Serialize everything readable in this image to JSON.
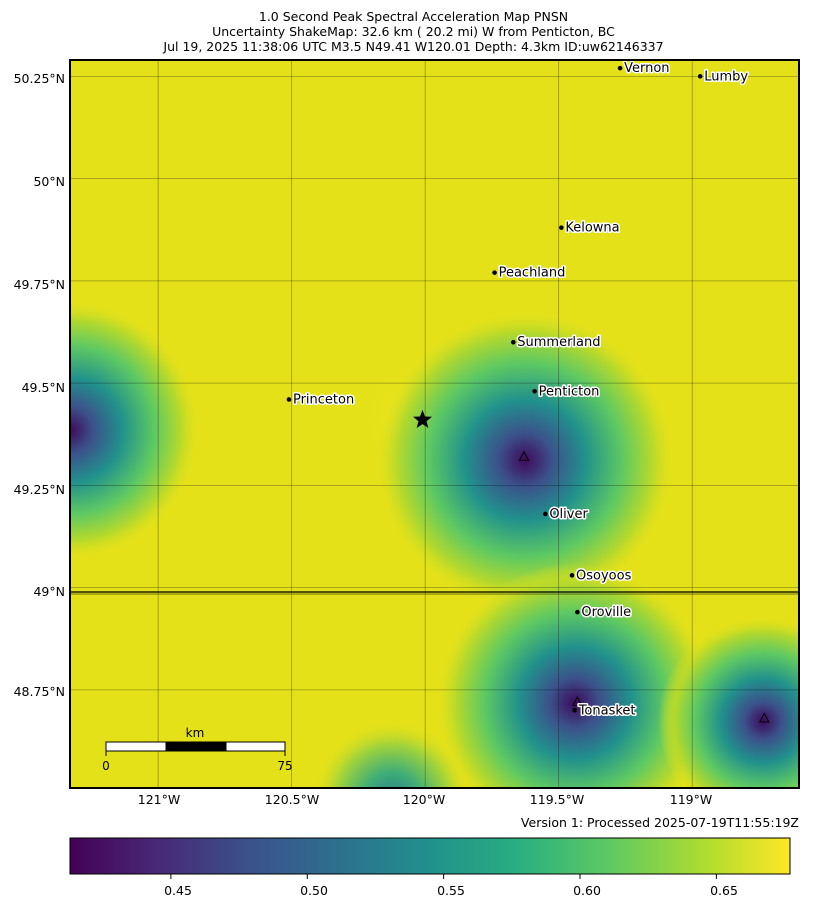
{
  "title": {
    "line1": "1.0 Second Peak Spectral Acceleration Map PNSN",
    "line2": "Uncertainty ShakeMap: 32.6 km (  20.2 mi) W from Penticton, BC",
    "line3": "Jul 19, 2025 11:38:06 UTC M3.5 N49.41 W120.01 Depth: 4.3km ID:uw62146337"
  },
  "version": "Version 1: Processed 2025-07-19T11:55:19Z",
  "lat_labels": [
    "50.25°N",
    "50°N",
    "49.75°N",
    "49.5°N",
    "49.25°N",
    "49°N",
    "48.75°N"
  ],
  "lon_labels": [
    "121°W",
    "120.5°W",
    "120°W",
    "119.5°W",
    "119°W"
  ],
  "cities": [
    {
      "name": "Vernon",
      "lon": -119.27,
      "lat": 50.27
    },
    {
      "name": "Lumby",
      "lon": -118.97,
      "lat": 50.25
    },
    {
      "name": "Kelowna",
      "lon": -119.49,
      "lat": 49.88
    },
    {
      "name": "Peachland",
      "lon": -119.74,
      "lat": 49.77
    },
    {
      "name": "Summerland",
      "lon": -119.67,
      "lat": 49.6
    },
    {
      "name": "Penticton",
      "lon": -119.59,
      "lat": 49.48
    },
    {
      "name": "Princeton",
      "lon": -120.51,
      "lat": 49.46
    },
    {
      "name": "Oliver",
      "lon": -119.55,
      "lat": 49.18
    },
    {
      "name": "Osoyoos",
      "lon": -119.45,
      "lat": 49.03
    },
    {
      "name": "Oroville",
      "lon": -119.43,
      "lat": 48.94
    },
    {
      "name": "Tonasket",
      "lon": -119.44,
      "lat": 48.7
    }
  ],
  "epicenter": {
    "lon": -120.01,
    "lat": 49.41
  },
  "stations": [
    {
      "lon": -119.63,
      "lat": 49.32
    },
    {
      "lon": -119.43,
      "lat": 48.72
    },
    {
      "lon": -118.73,
      "lat": 48.68
    }
  ],
  "scale_bar": {
    "unit": "km",
    "start": "0",
    "end": "75"
  },
  "colorbar": {
    "min": 0.413,
    "max": 0.677,
    "ticks": [
      "0.45",
      "0.50",
      "0.55",
      "0.60",
      "0.65"
    ],
    "tick_values": [
      0.45,
      0.5,
      0.55,
      0.6,
      0.65
    ]
  },
  "colors": {
    "viridis": [
      "#440154",
      "#3b528b",
      "#21918c",
      "#5ec962",
      "#fde725"
    ],
    "background_field": "#e4e119"
  },
  "map_extent": {
    "lon_min": -121.33,
    "lon_max": -118.6,
    "lat_min": 48.51,
    "lat_max": 50.29
  }
}
